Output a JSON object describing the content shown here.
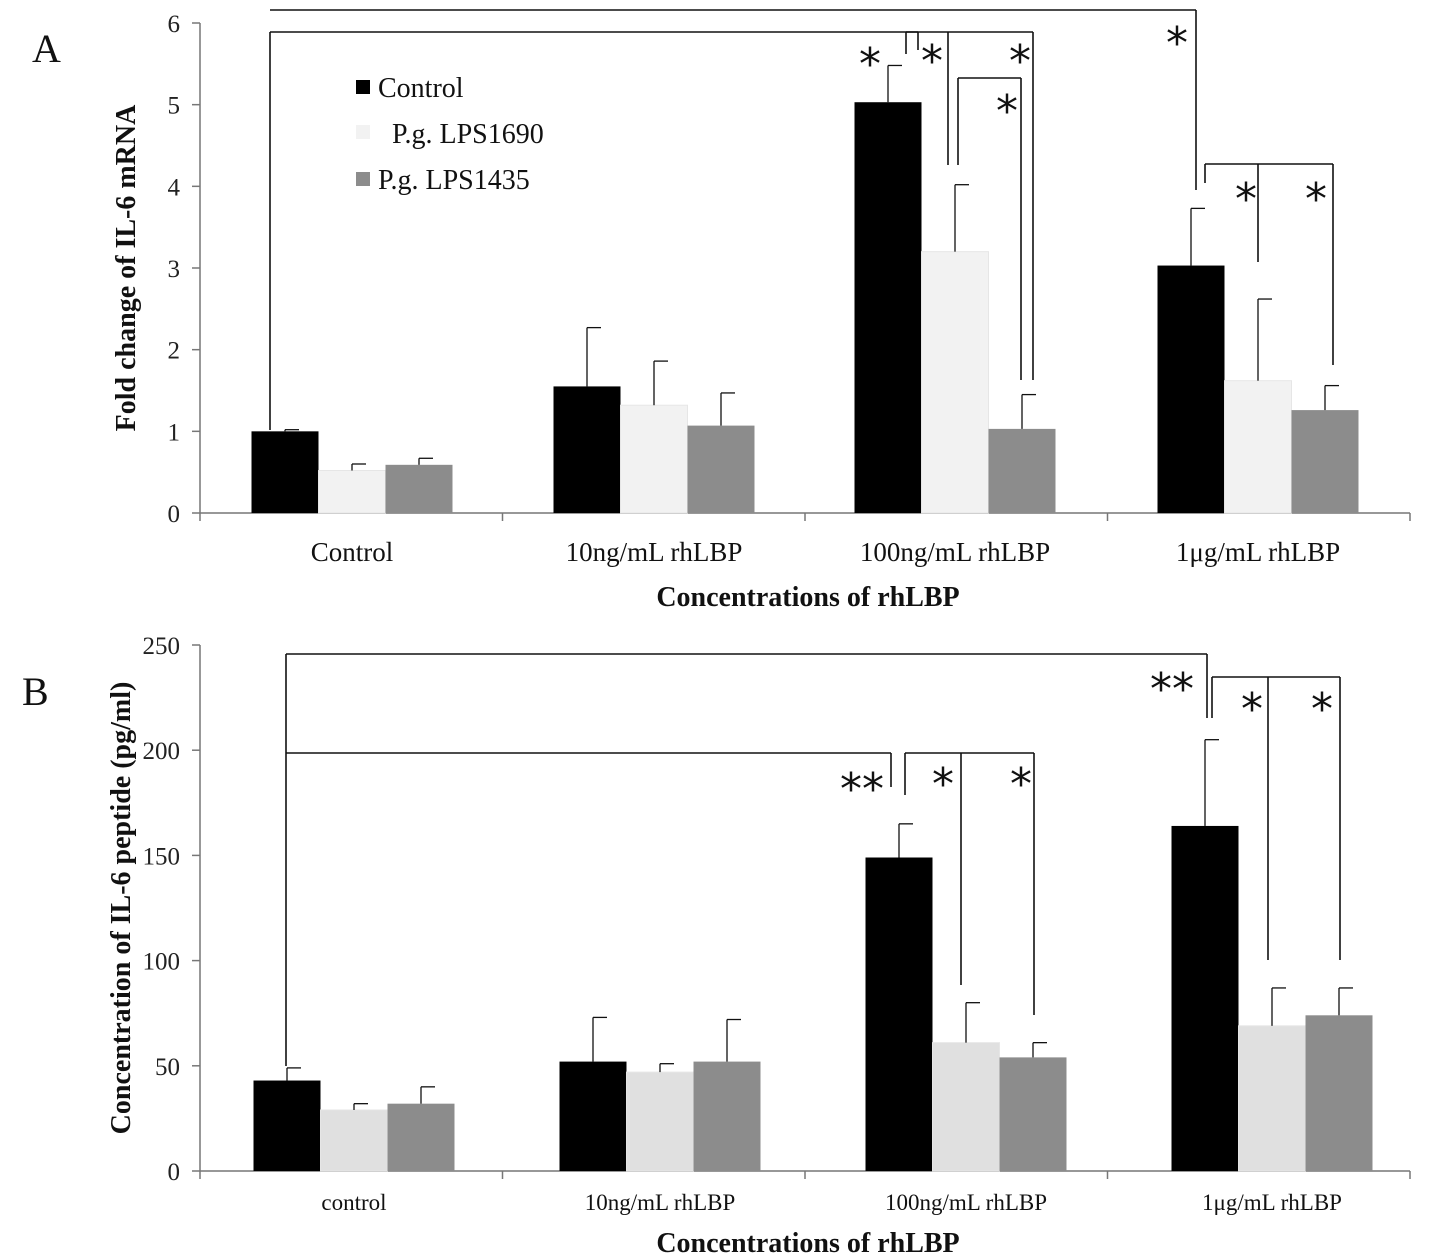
{
  "chart_data": [
    {
      "type": "bar",
      "panel_label": "A",
      "title": "",
      "categories": [
        "Control",
        "10ng/mL rhLBP",
        "100ng/mL rhLBP",
        "1μg/mL rhLBP"
      ],
      "series": [
        {
          "name": "Control",
          "values": [
            1.0,
            1.55,
            5.03,
            3.03
          ],
          "errors": [
            0.02,
            0.72,
            0.45,
            0.7
          ],
          "color": "#000000"
        },
        {
          "name": "P.g. LPS1690",
          "values": [
            0.52,
            1.32,
            3.2,
            1.62
          ],
          "errors": [
            0.08,
            0.54,
            0.82,
            1.0
          ],
          "color": "#f2f2f2"
        },
        {
          "name": "P.g. LPS1435",
          "values": [
            0.59,
            1.07,
            1.03,
            1.26
          ],
          "errors": [
            0.08,
            0.4,
            0.42,
            0.3
          ],
          "color": "#8c8c8c"
        }
      ],
      "xlabel": "Concentrations of rhLBP",
      "ylabel": "Fold change of IL-6 mRNA",
      "ylim": [
        0,
        6
      ],
      "yticks": [
        "0",
        "1",
        "2",
        "3",
        "4",
        "5",
        "6"
      ],
      "legend": "top-left inside",
      "annotations": [
        "*",
        "*",
        "*",
        "*",
        "*",
        "*",
        "*"
      ]
    },
    {
      "type": "bar",
      "panel_label": "B",
      "title": "",
      "categories": [
        "control",
        "10ng/mL rhLBP",
        "100ng/mL rhLBP",
        "1μg/mL rhLBP"
      ],
      "series": [
        {
          "name": "Control",
          "values": [
            43,
            52,
            149,
            164
          ],
          "errors": [
            6,
            21,
            16,
            41
          ],
          "color": "#000000"
        },
        {
          "name": "P.g. LPS1690",
          "values": [
            29,
            47,
            61,
            69
          ],
          "errors": [
            3,
            4,
            19,
            18
          ],
          "color": "#e0e0e0"
        },
        {
          "name": "P.g. LPS1435",
          "values": [
            32,
            52,
            54,
            74
          ],
          "errors": [
            8,
            20,
            7,
            13
          ],
          "color": "#8c8c8c"
        }
      ],
      "xlabel": "Concentrations of rhLBP",
      "ylabel": "Concentration of IL-6 peptide (pg/ml)",
      "ylim": [
        0,
        250
      ],
      "yticks": [
        "0",
        "50",
        "100",
        "150",
        "200",
        "250"
      ],
      "annotations": [
        "**",
        "*",
        "*",
        "**",
        "*",
        "*"
      ]
    }
  ]
}
